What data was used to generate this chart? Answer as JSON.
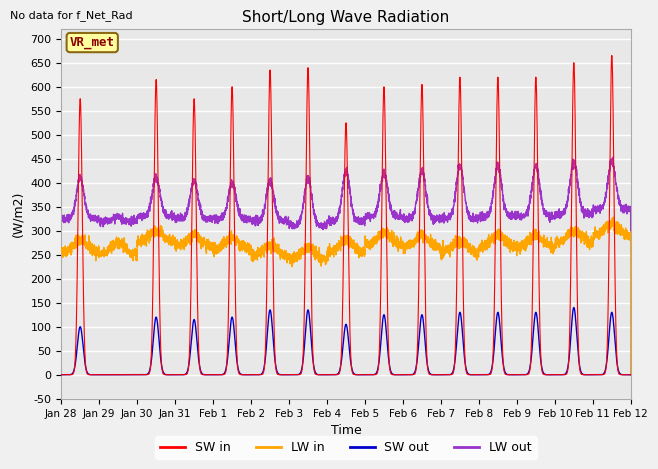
{
  "title": "Short/Long Wave Radiation",
  "xlabel": "Time",
  "ylabel": "(W/m2)",
  "subtitle": "No data for f_Net_Rad",
  "legend_label": "VR_met",
  "ylim": [
    -50,
    720
  ],
  "yticks": [
    -50,
    0,
    50,
    100,
    150,
    200,
    250,
    300,
    350,
    400,
    450,
    500,
    550,
    600,
    650,
    700
  ],
  "xtick_labels": [
    "Jan 28",
    "Jan 29",
    "Jan 30",
    "Jan 31",
    "Feb 1",
    "Feb 2",
    "Feb 3",
    "Feb 4",
    "Feb 5",
    "Feb 6",
    "Feb 7",
    "Feb 8",
    "Feb 9",
    "Feb 10",
    "Feb 11",
    "Feb 12"
  ],
  "colors": {
    "SW_in": "#FF0000",
    "LW_in": "#FFA500",
    "SW_out": "#0000CC",
    "LW_out": "#9933CC"
  },
  "plot_bg": "#E8E8E8",
  "fig_bg": "#F0F0F0",
  "grid_color": "#FFFFFF",
  "legend_entries": [
    "SW in",
    "LW in",
    "SW out",
    "LW out"
  ],
  "sw_in_peaks": [
    575,
    0,
    615,
    575,
    600,
    635,
    640,
    525,
    600,
    605,
    620,
    620,
    620,
    650,
    665
  ],
  "lw_in_base": [
    255,
    250,
    275,
    265,
    260,
    245,
    240,
    255,
    270,
    265,
    255,
    265,
    265,
    275,
    290
  ],
  "sw_out_peaks": [
    100,
    0,
    120,
    115,
    120,
    135,
    135,
    105,
    125,
    125,
    130,
    130,
    130,
    140,
    130
  ],
  "lw_out_base": [
    325,
    320,
    330,
    325,
    325,
    320,
    310,
    320,
    330,
    325,
    325,
    330,
    330,
    335,
    345
  ],
  "lw_out_peaks": [
    410,
    330,
    410,
    405,
    400,
    405,
    410,
    425,
    420,
    425,
    435,
    435,
    435,
    445,
    445
  ]
}
